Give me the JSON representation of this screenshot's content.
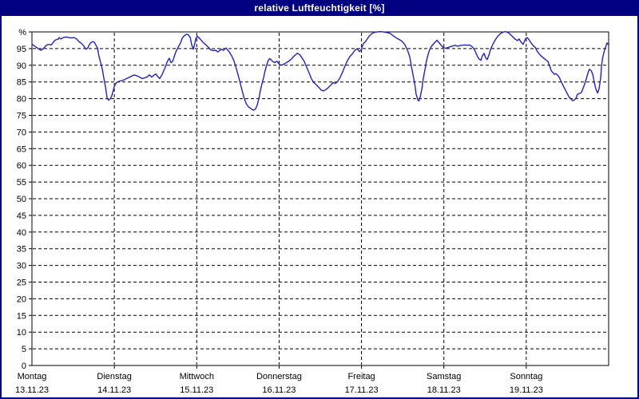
{
  "window": {
    "title": "relative Luftfeuchtigkeit [%]"
  },
  "colors": {
    "titlebar_bg": "#000080",
    "titlebar_fg": "#ffffff",
    "window_border": "#000080",
    "plot_border": "#000000",
    "grid": "#000000",
    "line": "#2121cc",
    "background": "#ffffff"
  },
  "chart_data": {
    "type": "line",
    "title": "relative Luftfeuchtigkeit [%]",
    "ylabel": "%",
    "ylim": [
      0,
      100
    ],
    "x_range_hours": 168,
    "grid": "dashed",
    "legend": "none",
    "y_ticks": [
      {
        "value": 0,
        "label": "0"
      },
      {
        "value": 5,
        "label": "5"
      },
      {
        "value": 10,
        "label": "10"
      },
      {
        "value": 15,
        "label": "15"
      },
      {
        "value": 20,
        "label": "20"
      },
      {
        "value": 25,
        "label": "25"
      },
      {
        "value": 30,
        "label": "30"
      },
      {
        "value": 35,
        "label": "35"
      },
      {
        "value": 40,
        "label": "40"
      },
      {
        "value": 45,
        "label": "45"
      },
      {
        "value": 50,
        "label": "50"
      },
      {
        "value": 55,
        "label": "55"
      },
      {
        "value": 60,
        "label": "60"
      },
      {
        "value": 65,
        "label": "65"
      },
      {
        "value": 70,
        "label": "70"
      },
      {
        "value": 75,
        "label": "75"
      },
      {
        "value": 80,
        "label": "80"
      },
      {
        "value": 85,
        "label": "85"
      },
      {
        "value": 90,
        "label": "90"
      },
      {
        "value": 95,
        "label": "95"
      },
      {
        "value": 100,
        "label": "%"
      }
    ],
    "x_days": [
      {
        "name": "Montag",
        "date": "13.11.23"
      },
      {
        "name": "Dienstag",
        "date": "14.11.23"
      },
      {
        "name": "Mittwoch",
        "date": "15.11.23"
      },
      {
        "name": "Donnerstag",
        "date": "16.11.23"
      },
      {
        "name": "Freitag",
        "date": "17.11.23"
      },
      {
        "name": "Samstag",
        "date": "18.11.23"
      },
      {
        "name": "Sonntag",
        "date": "19.11.23"
      }
    ],
    "series": [
      {
        "name": "relative Luftfeuchtigkeit",
        "unit": "%",
        "points": [
          [
            0,
            96.4
          ],
          [
            0.7,
            95.8
          ],
          [
            1.4,
            95.3
          ],
          [
            2.1,
            94.8
          ],
          [
            2.6,
            94.5
          ],
          [
            3.3,
            95
          ],
          [
            4.2,
            96
          ],
          [
            4.9,
            96.3
          ],
          [
            5.6,
            96.1
          ],
          [
            6,
            96.6
          ],
          [
            6.7,
            97.5
          ],
          [
            7.7,
            97.9
          ],
          [
            7.9,
            98.3
          ],
          [
            8.4,
            97.9
          ],
          [
            9.1,
            98.3
          ],
          [
            10,
            98.5
          ],
          [
            10.7,
            98.3
          ],
          [
            11.4,
            98.2
          ],
          [
            12.3,
            98.3
          ],
          [
            13,
            97.9
          ],
          [
            13.7,
            97.1
          ],
          [
            14.7,
            96.3
          ],
          [
            15.4,
            95.3
          ],
          [
            15.8,
            94.8
          ],
          [
            16.3,
            95.3
          ],
          [
            17,
            96.7
          ],
          [
            17.7,
            97.1
          ],
          [
            18.2,
            96.9
          ],
          [
            18.6,
            96.1
          ],
          [
            19.1,
            95.2
          ],
          [
            19.5,
            92.8
          ],
          [
            20,
            90.8
          ],
          [
            20.5,
            88.8
          ],
          [
            20.9,
            86.4
          ],
          [
            21.4,
            83.6
          ],
          [
            21.9,
            80.2
          ],
          [
            22.3,
            79.5
          ],
          [
            22.8,
            79.9
          ],
          [
            23.3,
            81
          ],
          [
            24,
            83.6
          ],
          [
            24.4,
            84.6
          ],
          [
            25.1,
            85.1
          ],
          [
            26.1,
            85.4
          ],
          [
            26.8,
            85.6
          ],
          [
            27.5,
            86
          ],
          [
            28.4,
            86.4
          ],
          [
            29.1,
            86.8
          ],
          [
            29.8,
            87.1
          ],
          [
            30.7,
            86.8
          ],
          [
            31.4,
            86.4
          ],
          [
            32.1,
            86
          ],
          [
            33,
            86.3
          ],
          [
            33.7,
            86.6
          ],
          [
            34.2,
            87.1
          ],
          [
            34.9,
            86.4
          ],
          [
            35.6,
            87.1
          ],
          [
            36.1,
            87.4
          ],
          [
            36.8,
            86.4
          ],
          [
            37.2,
            86
          ],
          [
            37.9,
            87.2
          ],
          [
            38.4,
            88.4
          ],
          [
            38.9,
            89.6
          ],
          [
            39.3,
            90.8
          ],
          [
            39.8,
            91.8
          ],
          [
            40,
            92.1
          ],
          [
            40.5,
            90.8
          ],
          [
            41,
            91.2
          ],
          [
            41.2,
            91.9
          ],
          [
            41.7,
            93.4
          ],
          [
            41.9,
            94
          ],
          [
            42.3,
            94.8
          ],
          [
            42.8,
            95.8
          ],
          [
            43.3,
            96.7
          ],
          [
            43.7,
            98
          ],
          [
            44.2,
            98.7
          ],
          [
            44.7,
            99.1
          ],
          [
            45.1,
            99.3
          ],
          [
            45.6,
            99.1
          ],
          [
            46.1,
            98.4
          ],
          [
            46.5,
            96.3
          ],
          [
            47,
            94.8
          ],
          [
            47.5,
            96.7
          ],
          [
            47.7,
            97.9
          ],
          [
            48.2,
            98.7
          ],
          [
            48.6,
            98.3
          ],
          [
            49.3,
            97.5
          ],
          [
            50,
            96.7
          ],
          [
            50.7,
            96.1
          ],
          [
            51.4,
            95.4
          ],
          [
            52.1,
            94.6
          ],
          [
            52.8,
            94.4
          ],
          [
            53.5,
            94.5
          ],
          [
            54.2,
            94
          ],
          [
            55.1,
            94.8
          ],
          [
            55.8,
            94.5
          ],
          [
            56.5,
            95.2
          ],
          [
            57.5,
            94
          ],
          [
            58.2,
            92.8
          ],
          [
            58.9,
            91.2
          ],
          [
            59.6,
            88.8
          ],
          [
            60.3,
            86.2
          ],
          [
            61,
            83.3
          ],
          [
            61.7,
            80.5
          ],
          [
            62.4,
            78.5
          ],
          [
            63.1,
            77.5
          ],
          [
            63.8,
            77
          ],
          [
            64.5,
            76.5
          ],
          [
            65.1,
            76.9
          ],
          [
            65.6,
            78
          ],
          [
            66.1,
            80
          ],
          [
            66.5,
            82.2
          ],
          [
            67,
            84.4
          ],
          [
            67.5,
            86.4
          ],
          [
            67.9,
            88.3
          ],
          [
            68.4,
            90.2
          ],
          [
            68.9,
            91.6
          ],
          [
            69.3,
            92
          ],
          [
            70,
            91.3
          ],
          [
            70.7,
            90.8
          ],
          [
            71.4,
            91.2
          ],
          [
            71.9,
            90.5
          ],
          [
            72.6,
            90
          ],
          [
            73.3,
            90.3
          ],
          [
            74,
            90.7
          ],
          [
            74.9,
            91.3
          ],
          [
            75.6,
            91.9
          ],
          [
            76.3,
            92.7
          ],
          [
            77.3,
            93.6
          ],
          [
            78,
            93.2
          ],
          [
            78.6,
            92.3
          ],
          [
            79.3,
            91.2
          ],
          [
            80,
            89.5
          ],
          [
            80.7,
            87.8
          ],
          [
            81.4,
            86
          ],
          [
            82.1,
            84.8
          ],
          [
            82.8,
            84.2
          ],
          [
            83.5,
            83.4
          ],
          [
            84.2,
            82.6
          ],
          [
            84.9,
            82.3
          ],
          [
            85.6,
            82.7
          ],
          [
            86.3,
            83.3
          ],
          [
            87,
            84
          ],
          [
            87.7,
            84.8
          ],
          [
            88.4,
            84.6
          ],
          [
            89.1,
            85.2
          ],
          [
            89.8,
            86.4
          ],
          [
            90.5,
            88
          ],
          [
            91.2,
            89.8
          ],
          [
            91.9,
            91.4
          ],
          [
            92.6,
            92.6
          ],
          [
            93.3,
            93.4
          ],
          [
            94,
            94.4
          ],
          [
            94.7,
            95
          ],
          [
            95.4,
            94.1
          ],
          [
            95.9,
            94.6
          ],
          [
            96.6,
            96.6
          ],
          [
            97,
            96.9
          ],
          [
            97.5,
            97.6
          ],
          [
            98.2,
            98.7
          ],
          [
            98.9,
            99.4
          ],
          [
            99.6,
            99.8
          ],
          [
            100.5,
            100
          ],
          [
            101.7,
            100.1
          ],
          [
            102.9,
            99.9
          ],
          [
            104,
            99.7
          ],
          [
            104.7,
            99.3
          ],
          [
            105.4,
            98.7
          ],
          [
            106.3,
            98.1
          ],
          [
            107,
            97.7
          ],
          [
            107.7,
            97.3
          ],
          [
            108.2,
            96.7
          ],
          [
            108.7,
            96.1
          ],
          [
            109.1,
            95.1
          ],
          [
            109.6,
            94
          ],
          [
            110.1,
            92.3
          ],
          [
            110.5,
            89.8
          ],
          [
            111,
            87.3
          ],
          [
            111.5,
            84.4
          ],
          [
            111.9,
            81.4
          ],
          [
            112.4,
            79.6
          ],
          [
            112.7,
            79.3
          ],
          [
            113.1,
            80.5
          ],
          [
            113.6,
            83
          ],
          [
            114,
            86
          ],
          [
            114.5,
            88.8
          ],
          [
            114.9,
            91.2
          ],
          [
            115.4,
            93.2
          ],
          [
            115.9,
            94.8
          ],
          [
            116.3,
            95.6
          ],
          [
            117,
            96.4
          ],
          [
            117.5,
            97
          ],
          [
            118,
            97.5
          ],
          [
            118.4,
            97
          ],
          [
            118.9,
            96.4
          ],
          [
            119.4,
            95.8
          ],
          [
            119.8,
            95.3
          ],
          [
            120.5,
            95.1
          ],
          [
            121.2,
            95.3
          ],
          [
            121.9,
            95.6
          ],
          [
            122.6,
            95.8
          ],
          [
            123.3,
            96
          ],
          [
            124,
            95.7
          ],
          [
            124.7,
            95.9
          ],
          [
            125.4,
            96
          ],
          [
            126.1,
            96.1
          ],
          [
            126.8,
            96
          ],
          [
            127.5,
            96.1
          ],
          [
            128.2,
            95.6
          ],
          [
            128.7,
            95
          ],
          [
            129.2,
            94
          ],
          [
            129.8,
            92.6
          ],
          [
            130.3,
            91.8
          ],
          [
            130.8,
            91.5
          ],
          [
            131.2,
            92.8
          ],
          [
            131.7,
            93.6
          ],
          [
            132.2,
            92.2
          ],
          [
            132.6,
            91.7
          ],
          [
            133.1,
            93
          ],
          [
            133.6,
            94.8
          ],
          [
            134.3,
            96.4
          ],
          [
            135,
            97.7
          ],
          [
            135.7,
            98.7
          ],
          [
            136.4,
            99.4
          ],
          [
            137.1,
            99.9
          ],
          [
            138,
            100.1
          ],
          [
            138.7,
            99.8
          ],
          [
            139.4,
            99.2
          ],
          [
            140.1,
            98.5
          ],
          [
            140.8,
            97.8
          ],
          [
            141.5,
            97.4
          ],
          [
            141.9,
            97.9
          ],
          [
            142.6,
            96.8
          ],
          [
            143.1,
            96.3
          ],
          [
            143.8,
            98
          ],
          [
            144.3,
            98.3
          ],
          [
            144.7,
            97.8
          ],
          [
            145.2,
            97
          ],
          [
            145.7,
            96.3
          ],
          [
            146.1,
            95.8
          ],
          [
            146.6,
            95.4
          ],
          [
            147.1,
            94.3
          ],
          [
            147.5,
            93.8
          ],
          [
            148.2,
            92.9
          ],
          [
            148.9,
            92.3
          ],
          [
            149.6,
            91.7
          ],
          [
            150.3,
            91.2
          ],
          [
            150.8,
            89.8
          ],
          [
            151.3,
            88.3
          ],
          [
            151.7,
            87.9
          ],
          [
            152.2,
            87.3
          ],
          [
            152.6,
            87.5
          ],
          [
            153.1,
            87.1
          ],
          [
            153.6,
            86.4
          ],
          [
            154.3,
            84.8
          ],
          [
            155,
            83.4
          ],
          [
            155.7,
            82
          ],
          [
            156.4,
            80.6
          ],
          [
            157.1,
            79.8
          ],
          [
            157.5,
            79.4
          ],
          [
            158,
            79.6
          ],
          [
            158.5,
            80.2
          ],
          [
            158.9,
            81.3
          ],
          [
            159.4,
            81.5
          ],
          [
            159.9,
            81.7
          ],
          [
            160.3,
            82.4
          ],
          [
            160.8,
            83.8
          ],
          [
            161.5,
            86
          ],
          [
            162,
            87.8
          ],
          [
            162.4,
            88.8
          ],
          [
            162.9,
            88.4
          ],
          [
            163.4,
            87.2
          ],
          [
            163.8,
            84.8
          ],
          [
            164.3,
            82.8
          ],
          [
            164.8,
            81.7
          ],
          [
            165.2,
            83
          ],
          [
            165.7,
            86.4
          ],
          [
            165.9,
            89.6
          ],
          [
            166.2,
            92
          ],
          [
            166.6,
            93.8
          ],
          [
            167.1,
            95.4
          ],
          [
            167.5,
            96.7
          ],
          [
            167.8,
            96.3
          ]
        ]
      }
    ]
  }
}
